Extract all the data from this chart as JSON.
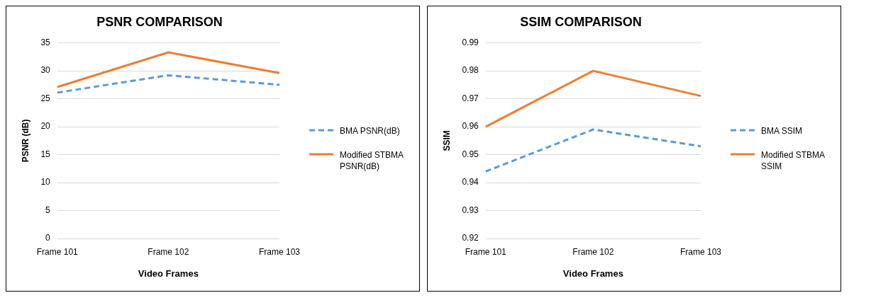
{
  "chart_data": [
    {
      "type": "line",
      "title": "PSNR COMPARISON",
      "xlabel": "Video Frames",
      "ylabel": "PSNR (dB)",
      "categories": [
        "Frame 101",
        "Frame 102",
        "Frame 103"
      ],
      "series": [
        {
          "name": "BMA PSNR(dB)",
          "color": "#5b9bd5",
          "values": [
            26.1,
            29.2,
            27.5
          ],
          "line_style": "dashed"
        },
        {
          "name": "Modified STBMA PSNR(dB)",
          "color": "#ed7d31",
          "values": [
            27.1,
            33.3,
            29.6
          ],
          "line_style": "solid"
        }
      ],
      "ylim": [
        0,
        35
      ],
      "yticks": [
        0,
        5,
        10,
        15,
        20,
        25,
        30,
        35
      ],
      "grid": "y",
      "legend": "right",
      "marker": "none"
    },
    {
      "type": "line",
      "title": "SSIM COMPARISON",
      "xlabel": "Video Frames",
      "ylabel": "SSIM",
      "categories": [
        "Frame 101",
        "Frame 102",
        "Frame 103"
      ],
      "series": [
        {
          "name": "BMA SSIM",
          "color": "#5b9bd5",
          "values": [
            0.944,
            0.959,
            0.953
          ],
          "line_style": "dashed"
        },
        {
          "name": "Modified STBMA SSIM",
          "color": "#ed7d31",
          "values": [
            0.96,
            0.98,
            0.971
          ],
          "line_style": "solid"
        }
      ],
      "ylim": [
        0.92,
        0.99
      ],
      "yticks": [
        0.92,
        0.93,
        0.94,
        0.95,
        0.96,
        0.97,
        0.98,
        0.99
      ],
      "grid": "y",
      "legend": "right",
      "marker": "none"
    }
  ]
}
